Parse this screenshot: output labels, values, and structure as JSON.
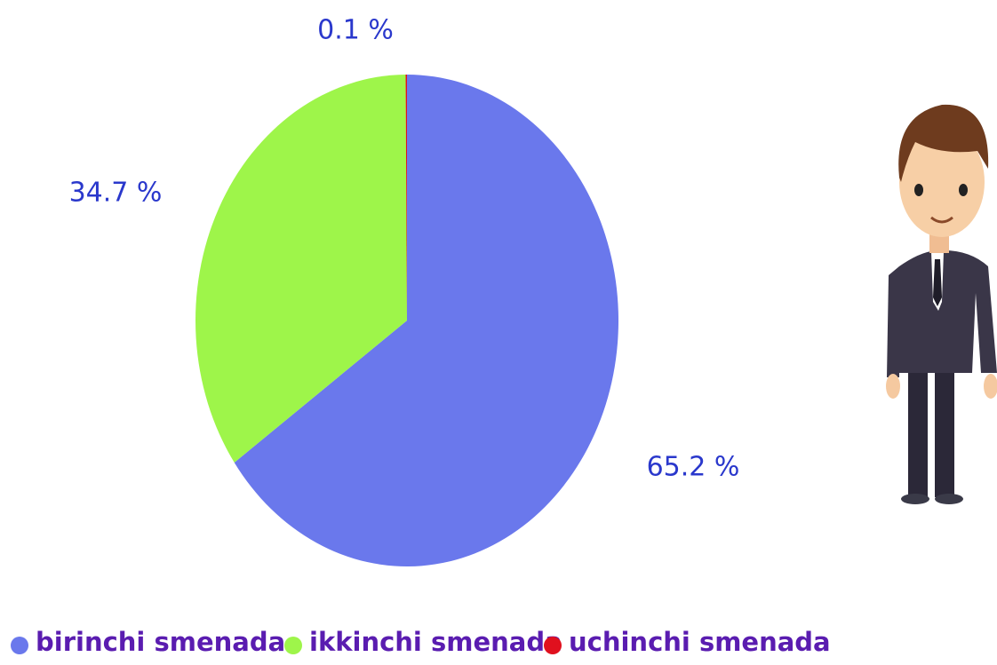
{
  "chart_data": {
    "type": "pie",
    "categories": [
      "birinchi smenada",
      "ikkinchi smenada",
      "uchinchi smenada"
    ],
    "values": [
      65.2,
      34.7,
      0.1
    ],
    "value_labels": [
      "65.2 %",
      "34.7 %",
      "0.1 %"
    ],
    "colors": [
      "#6a78ec",
      "#9ef54a",
      "#e0101e"
    ],
    "legend": "bottom"
  }
}
